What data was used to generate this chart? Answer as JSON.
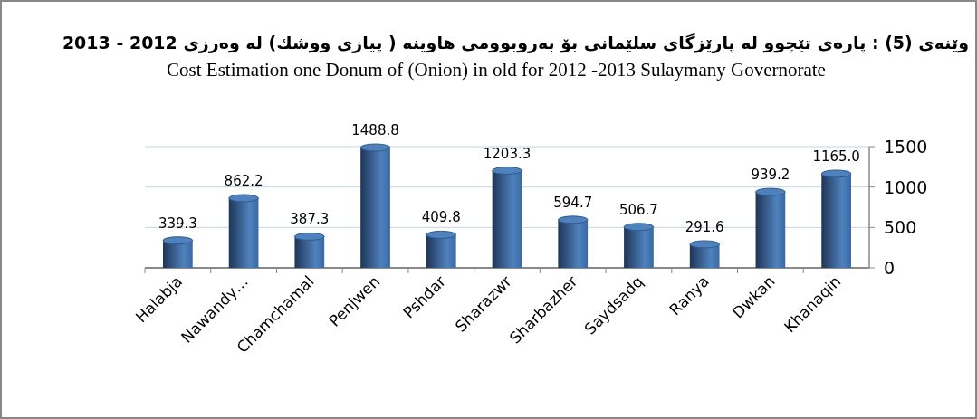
{
  "chart_data": {
    "type": "bar",
    "title": "وێنەی (5) : پارەی تێچوو لە پارێزگای سلێمانی بۆ بەروبوومی هاوینە ( پیازی ووشك) لە وەرزی 2012 - 2013",
    "subtitle": "Cost Estimation one Donum of (Onion) in old for 2012 -2013  Sulaymany Governorate",
    "categories": [
      "Halabja",
      "Nawandy…",
      "Chamchamal",
      "Penjwen",
      "Pshdar",
      "Sharazwr",
      "Sharbazher",
      "Saydsadq",
      "Ranya",
      "Dwkan",
      "Khanaqin"
    ],
    "values": [
      339.3,
      862.2,
      387.3,
      1488.8,
      409.8,
      1203.3,
      594.7,
      506.7,
      291.6,
      939.2,
      1165.0
    ],
    "value_labels": [
      "339.3",
      "862.2",
      "387.3",
      "1488.8",
      "409.8",
      "1203.3",
      "594.7",
      "506.7",
      "291.6",
      "939.2",
      "1165.0"
    ],
    "color": "#4f81bd",
    "ylim": [
      0,
      1500
    ],
    "yticks": [
      0,
      500,
      1000,
      1500
    ],
    "grid": "y"
  }
}
